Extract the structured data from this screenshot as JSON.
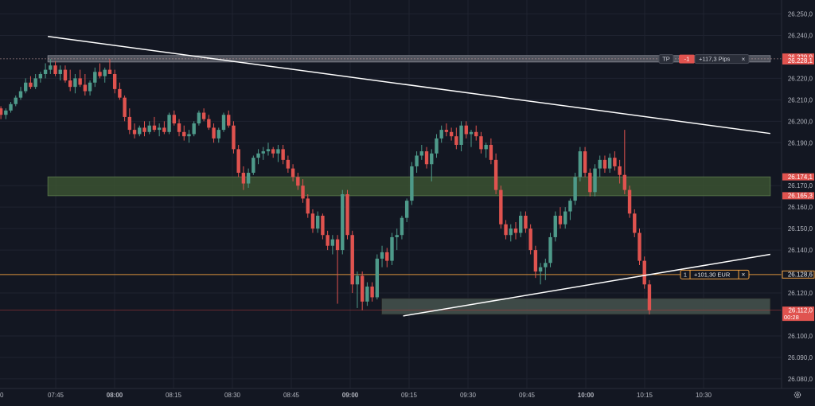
{
  "colors": {
    "background": "#131722",
    "grid": "#1f2330",
    "axis_text": "#b2b5be",
    "bull": "#4e9a8a",
    "bear": "#e0534f",
    "trend_line": "#ffffff",
    "tp_zone": "#50535e",
    "demand_zone": "#3b4f33",
    "support_zone": "#3e4a46",
    "position_line": "#f0a040",
    "stop_line": "#b23a3a"
  },
  "chart_data": {
    "type": "candlestick",
    "instrument_price_axis": "right",
    "ylim": [
      26077,
      26255
    ],
    "x_ticks": [
      {
        "label": "0",
        "t": 0
      },
      {
        "label": "07:45",
        "t": 0
      },
      {
        "label": "08:00",
        "t": 15,
        "bold": true
      },
      {
        "label": "08:15",
        "t": 30
      },
      {
        "label": "08:30",
        "t": 45
      },
      {
        "label": "08:45",
        "t": 60
      },
      {
        "label": "09:00",
        "t": 75,
        "bold": true
      },
      {
        "label": "09:15",
        "t": 90
      },
      {
        "label": "09:30",
        "t": 105
      },
      {
        "label": "09:45",
        "t": 120
      },
      {
        "label": "10:00",
        "t": 135,
        "bold": true
      },
      {
        "label": "10:15",
        "t": 150
      },
      {
        "label": "10:30",
        "t": 165
      }
    ],
    "y_ticks": [
      {
        "label": "26.250,0",
        "v": 26250
      },
      {
        "label": "26.240,0",
        "v": 26240
      },
      {
        "label": "26.220,0",
        "v": 26220
      },
      {
        "label": "26.210,0",
        "v": 26210
      },
      {
        "label": "26.200,0",
        "v": 26200
      },
      {
        "label": "26.190,0",
        "v": 26190
      },
      {
        "label": "26.170,0",
        "v": 26170
      },
      {
        "label": "26.160,0",
        "v": 26160
      },
      {
        "label": "26.150,0",
        "v": 26150
      },
      {
        "label": "26.140,0",
        "v": 26140
      },
      {
        "label": "26.120,0",
        "v": 26120
      },
      {
        "label": "26.100,0",
        "v": 26100
      },
      {
        "label": "26.090,0",
        "v": 26090
      },
      {
        "label": "26.080,0",
        "v": 26080
      }
    ],
    "price_tags": [
      {
        "label": "26.229,9",
        "v": 26229.9,
        "color": "#e0534f",
        "text_color": "#ffffff"
      },
      {
        "label": "26.228,1",
        "v": 26228.1,
        "color": "#e0534f",
        "text_color": "#ffffff"
      },
      {
        "label": "26.174,1",
        "v": 26174.1,
        "color": "#e0534f",
        "text_color": "#ffffff"
      },
      {
        "label": "26.165,3",
        "v": 26165.3,
        "color": "#e0534f",
        "text_color": "#ffffff"
      },
      {
        "label": "26.128,6",
        "v": 26128.6,
        "color": "#131722",
        "text_color": "#e8e8e8",
        "border": "#f0a040"
      },
      {
        "label": "26.112,0",
        "v": 26112.0,
        "sub": "00:28",
        "color": "#e0534f",
        "text_color": "#ffffff"
      }
    ],
    "zones": [
      {
        "name": "tp-zone",
        "from": 26227.6,
        "to": 26230.6,
        "t0": -2,
        "t1": 182,
        "color": "#5a5d66",
        "opacity": 0.85,
        "border": "#8a8d96"
      },
      {
        "name": "demand-zone",
        "from": 26165.3,
        "to": 26174.1,
        "t0": -2,
        "t1": 182,
        "color": "#3b5231",
        "opacity": 0.85,
        "border": "#5c7a4d"
      },
      {
        "name": "support-zone",
        "from": 26110,
        "to": 26117.5,
        "t0": 83,
        "t1": 182,
        "color": "#44504b",
        "opacity": 0.9,
        "border": "#222"
      }
    ],
    "h_lines": [
      {
        "name": "position-line",
        "v": 26128.6,
        "color": "#f0a040",
        "width": 1,
        "opacity": 0.9
      },
      {
        "name": "stop-line",
        "v": 26112.0,
        "color": "#b23a3a",
        "width": 0.7,
        "opacity": 0.7
      }
    ],
    "trend_lines": [
      {
        "name": "descending-trendline",
        "t0": -2,
        "v0": 26239.5,
        "t1": 182,
        "v1": 26194.3
      },
      {
        "name": "ascending-trendline",
        "t0": 88.5,
        "v0": 26109.3,
        "t1": 182,
        "v1": 26138.0
      }
    ],
    "labels": {
      "tp_tag": "TP",
      "tp_count": "-1",
      "tp_pips": "+117,3 Pips",
      "tp_close": "×",
      "pos_qty": "1",
      "pos_pnl": "+101,30 EUR",
      "pos_close": "×"
    },
    "candles": [
      [
        26206,
        26207,
        26201,
        26203
      ],
      [
        26203,
        26206,
        26201,
        26205
      ],
      [
        26205,
        26209,
        26204,
        26208
      ],
      [
        26208,
        26212,
        26207,
        26211
      ],
      [
        26211,
        26216,
        26210,
        26214
      ],
      [
        26214,
        26220,
        26213,
        26218
      ],
      [
        26218,
        26221,
        26215,
        26216
      ],
      [
        26216,
        26222,
        26215,
        26220
      ],
      [
        26220,
        26223,
        26218,
        26222
      ],
      [
        26222,
        26227,
        26220,
        26224
      ],
      [
        26224,
        26229,
        26222,
        26226
      ],
      [
        26226,
        26228,
        26221,
        26222
      ],
      [
        26222,
        26226,
        26219,
        26224
      ],
      [
        26224,
        26226,
        26218,
        26219
      ],
      [
        26219,
        26224,
        26214,
        26216
      ],
      [
        26216,
        26222,
        26213,
        26220
      ],
      [
        26220,
        26224,
        26216,
        26217
      ],
      [
        26217,
        26222,
        26212,
        26214
      ],
      [
        26214,
        26219,
        26212,
        26218
      ],
      [
        26218,
        26225,
        26216,
        26223
      ],
      [
        26223,
        26227,
        26220,
        26221
      ],
      [
        26221,
        26225,
        26218,
        26224
      ],
      [
        26224,
        26229,
        26222,
        26222
      ],
      [
        26222,
        26224,
        26213,
        26215
      ],
      [
        26215,
        26218,
        26210,
        26211
      ],
      [
        26211,
        26212,
        26200,
        26202
      ],
      [
        26202,
        26206,
        26194,
        26196
      ],
      [
        26196,
        26199,
        26192,
        26194
      ],
      [
        26194,
        26198,
        26193,
        26197
      ],
      [
        26197,
        26200,
        26193,
        26195
      ],
      [
        26195,
        26200,
        26194,
        26198
      ],
      [
        26198,
        26202,
        26195,
        26196
      ],
      [
        26196,
        26199,
        26193,
        26197
      ],
      [
        26197,
        26200,
        26194,
        26195
      ],
      [
        26195,
        26204,
        26194,
        26203
      ],
      [
        26203,
        26205,
        26198,
        26199
      ],
      [
        26199,
        26201,
        26193,
        26195
      ],
      [
        26195,
        26198,
        26191,
        26193
      ],
      [
        26193,
        26196,
        26190,
        26194
      ],
      [
        26194,
        26200,
        26193,
        26199
      ],
      [
        26199,
        26205,
        26198,
        26204
      ],
      [
        26204,
        26206,
        26200,
        26201
      ],
      [
        26201,
        26203,
        26196,
        26197
      ],
      [
        26197,
        26199,
        26190,
        26192
      ],
      [
        26192,
        26197,
        26190,
        26196
      ],
      [
        26196,
        26204,
        26195,
        26203
      ],
      [
        26203,
        26205,
        26197,
        26198
      ],
      [
        26198,
        26200,
        26185,
        26187
      ],
      [
        26187,
        26189,
        26174,
        26176
      ],
      [
        26176,
        26179,
        26168,
        26171
      ],
      [
        26171,
        26178,
        26169,
        26176
      ],
      [
        26176,
        26184,
        26175,
        26183
      ],
      [
        26183,
        26187,
        26180,
        26185
      ],
      [
        26185,
        26188,
        26182,
        26186
      ],
      [
        26186,
        26190,
        26184,
        26187
      ],
      [
        26187,
        26188,
        26183,
        26185
      ],
      [
        26185,
        26189,
        26181,
        26187
      ],
      [
        26187,
        26189,
        26180,
        26182
      ],
      [
        26182,
        26184,
        26176,
        26178
      ],
      [
        26178,
        26180,
        26172,
        26174
      ],
      [
        26174,
        26176,
        26168,
        26170
      ],
      [
        26170,
        26173,
        26162,
        26164
      ],
      [
        26164,
        26166,
        26155,
        26157
      ],
      [
        26157,
        26159,
        26148,
        26150
      ],
      [
        26150,
        26158,
        26148,
        26156
      ],
      [
        26156,
        26157,
        26145,
        26147
      ],
      [
        26147,
        26149,
        26140,
        26142
      ],
      [
        26142,
        26147,
        26138,
        26145
      ],
      [
        26145,
        26147,
        26115,
        26140
      ],
      [
        26140,
        26168,
        26138,
        26166
      ],
      [
        26166,
        26168,
        26145,
        26147
      ],
      [
        26147,
        26149,
        26120,
        26124
      ],
      [
        26124,
        26130,
        26113,
        26128
      ],
      [
        26128,
        26130,
        26112,
        26116
      ],
      [
        26116,
        26125,
        26114,
        26123
      ],
      [
        26123,
        26125,
        26116,
        26118
      ],
      [
        26118,
        26138,
        26117,
        26136
      ],
      [
        26136,
        26142,
        26132,
        26139
      ],
      [
        26139,
        26141,
        26132,
        26135
      ],
      [
        26135,
        26148,
        26133,
        26146
      ],
      [
        26146,
        26150,
        26140,
        26147
      ],
      [
        26147,
        26156,
        26145,
        26155
      ],
      [
        26155,
        26164,
        26153,
        26163
      ],
      [
        26163,
        26181,
        26161,
        26179
      ],
      [
        26179,
        26186,
        26176,
        26184
      ],
      [
        26184,
        26189,
        26182,
        26186
      ],
      [
        26186,
        26188,
        26178,
        26180
      ],
      [
        26180,
        26187,
        26172,
        26185
      ],
      [
        26185,
        26194,
        26183,
        26192
      ],
      [
        26192,
        26198,
        26190,
        26196
      ],
      [
        26196,
        26199,
        26193,
        26195
      ],
      [
        26195,
        26197,
        26191,
        26193
      ],
      [
        26193,
        26197,
        26187,
        26189
      ],
      [
        26189,
        26200,
        26186,
        26198
      ],
      [
        26198,
        26200,
        26192,
        26194
      ],
      [
        26194,
        26196,
        26188,
        26195
      ],
      [
        26195,
        26198,
        26191,
        26193
      ],
      [
        26193,
        26195,
        26185,
        26187
      ],
      [
        26187,
        26190,
        26183,
        26189
      ],
      [
        26189,
        26192,
        26180,
        26182
      ],
      [
        26182,
        26185,
        26166,
        26168
      ],
      [
        26168,
        26170,
        26150,
        26152
      ],
      [
        26152,
        26154,
        26145,
        26147
      ],
      [
        26147,
        26152,
        26144,
        26150
      ],
      [
        26150,
        26153,
        26145,
        26148
      ],
      [
        26148,
        26158,
        26146,
        26156
      ],
      [
        26156,
        26158,
        26148,
        26150
      ],
      [
        26150,
        26152,
        26138,
        26140
      ],
      [
        26140,
        26142,
        26127,
        26130
      ],
      [
        26130,
        26134,
        26124,
        26132
      ],
      [
        26132,
        26136,
        26126,
        26134
      ],
      [
        26134,
        26148,
        26132,
        26146
      ],
      [
        26146,
        26158,
        26144,
        26156
      ],
      [
        26156,
        26160,
        26150,
        26152
      ],
      [
        26152,
        26160,
        26150,
        26158
      ],
      [
        26158,
        26164,
        26154,
        26163
      ],
      [
        26163,
        26176,
        26161,
        26174
      ],
      [
        26174,
        26188,
        26172,
        26186
      ],
      [
        26186,
        26188,
        26174,
        26176
      ],
      [
        26176,
        26178,
        26165,
        26167
      ],
      [
        26167,
        26180,
        26165,
        26178
      ],
      [
        26178,
        26184,
        26174,
        26182
      ],
      [
        26182,
        26184,
        26176,
        26178
      ],
      [
        26178,
        26185,
        26176,
        26183
      ],
      [
        26183,
        26186,
        26177,
        26179
      ],
      [
        26179,
        26182,
        26171,
        26175
      ],
      [
        26175,
        26196,
        26166,
        26168
      ],
      [
        26168,
        26170,
        26155,
        26157
      ],
      [
        26157,
        26159,
        26146,
        26148
      ],
      [
        26148,
        26150,
        26133,
        26135
      ],
      [
        26135,
        26137,
        26122,
        26124
      ],
      [
        26124,
        26126,
        26110,
        26112
      ]
    ]
  }
}
